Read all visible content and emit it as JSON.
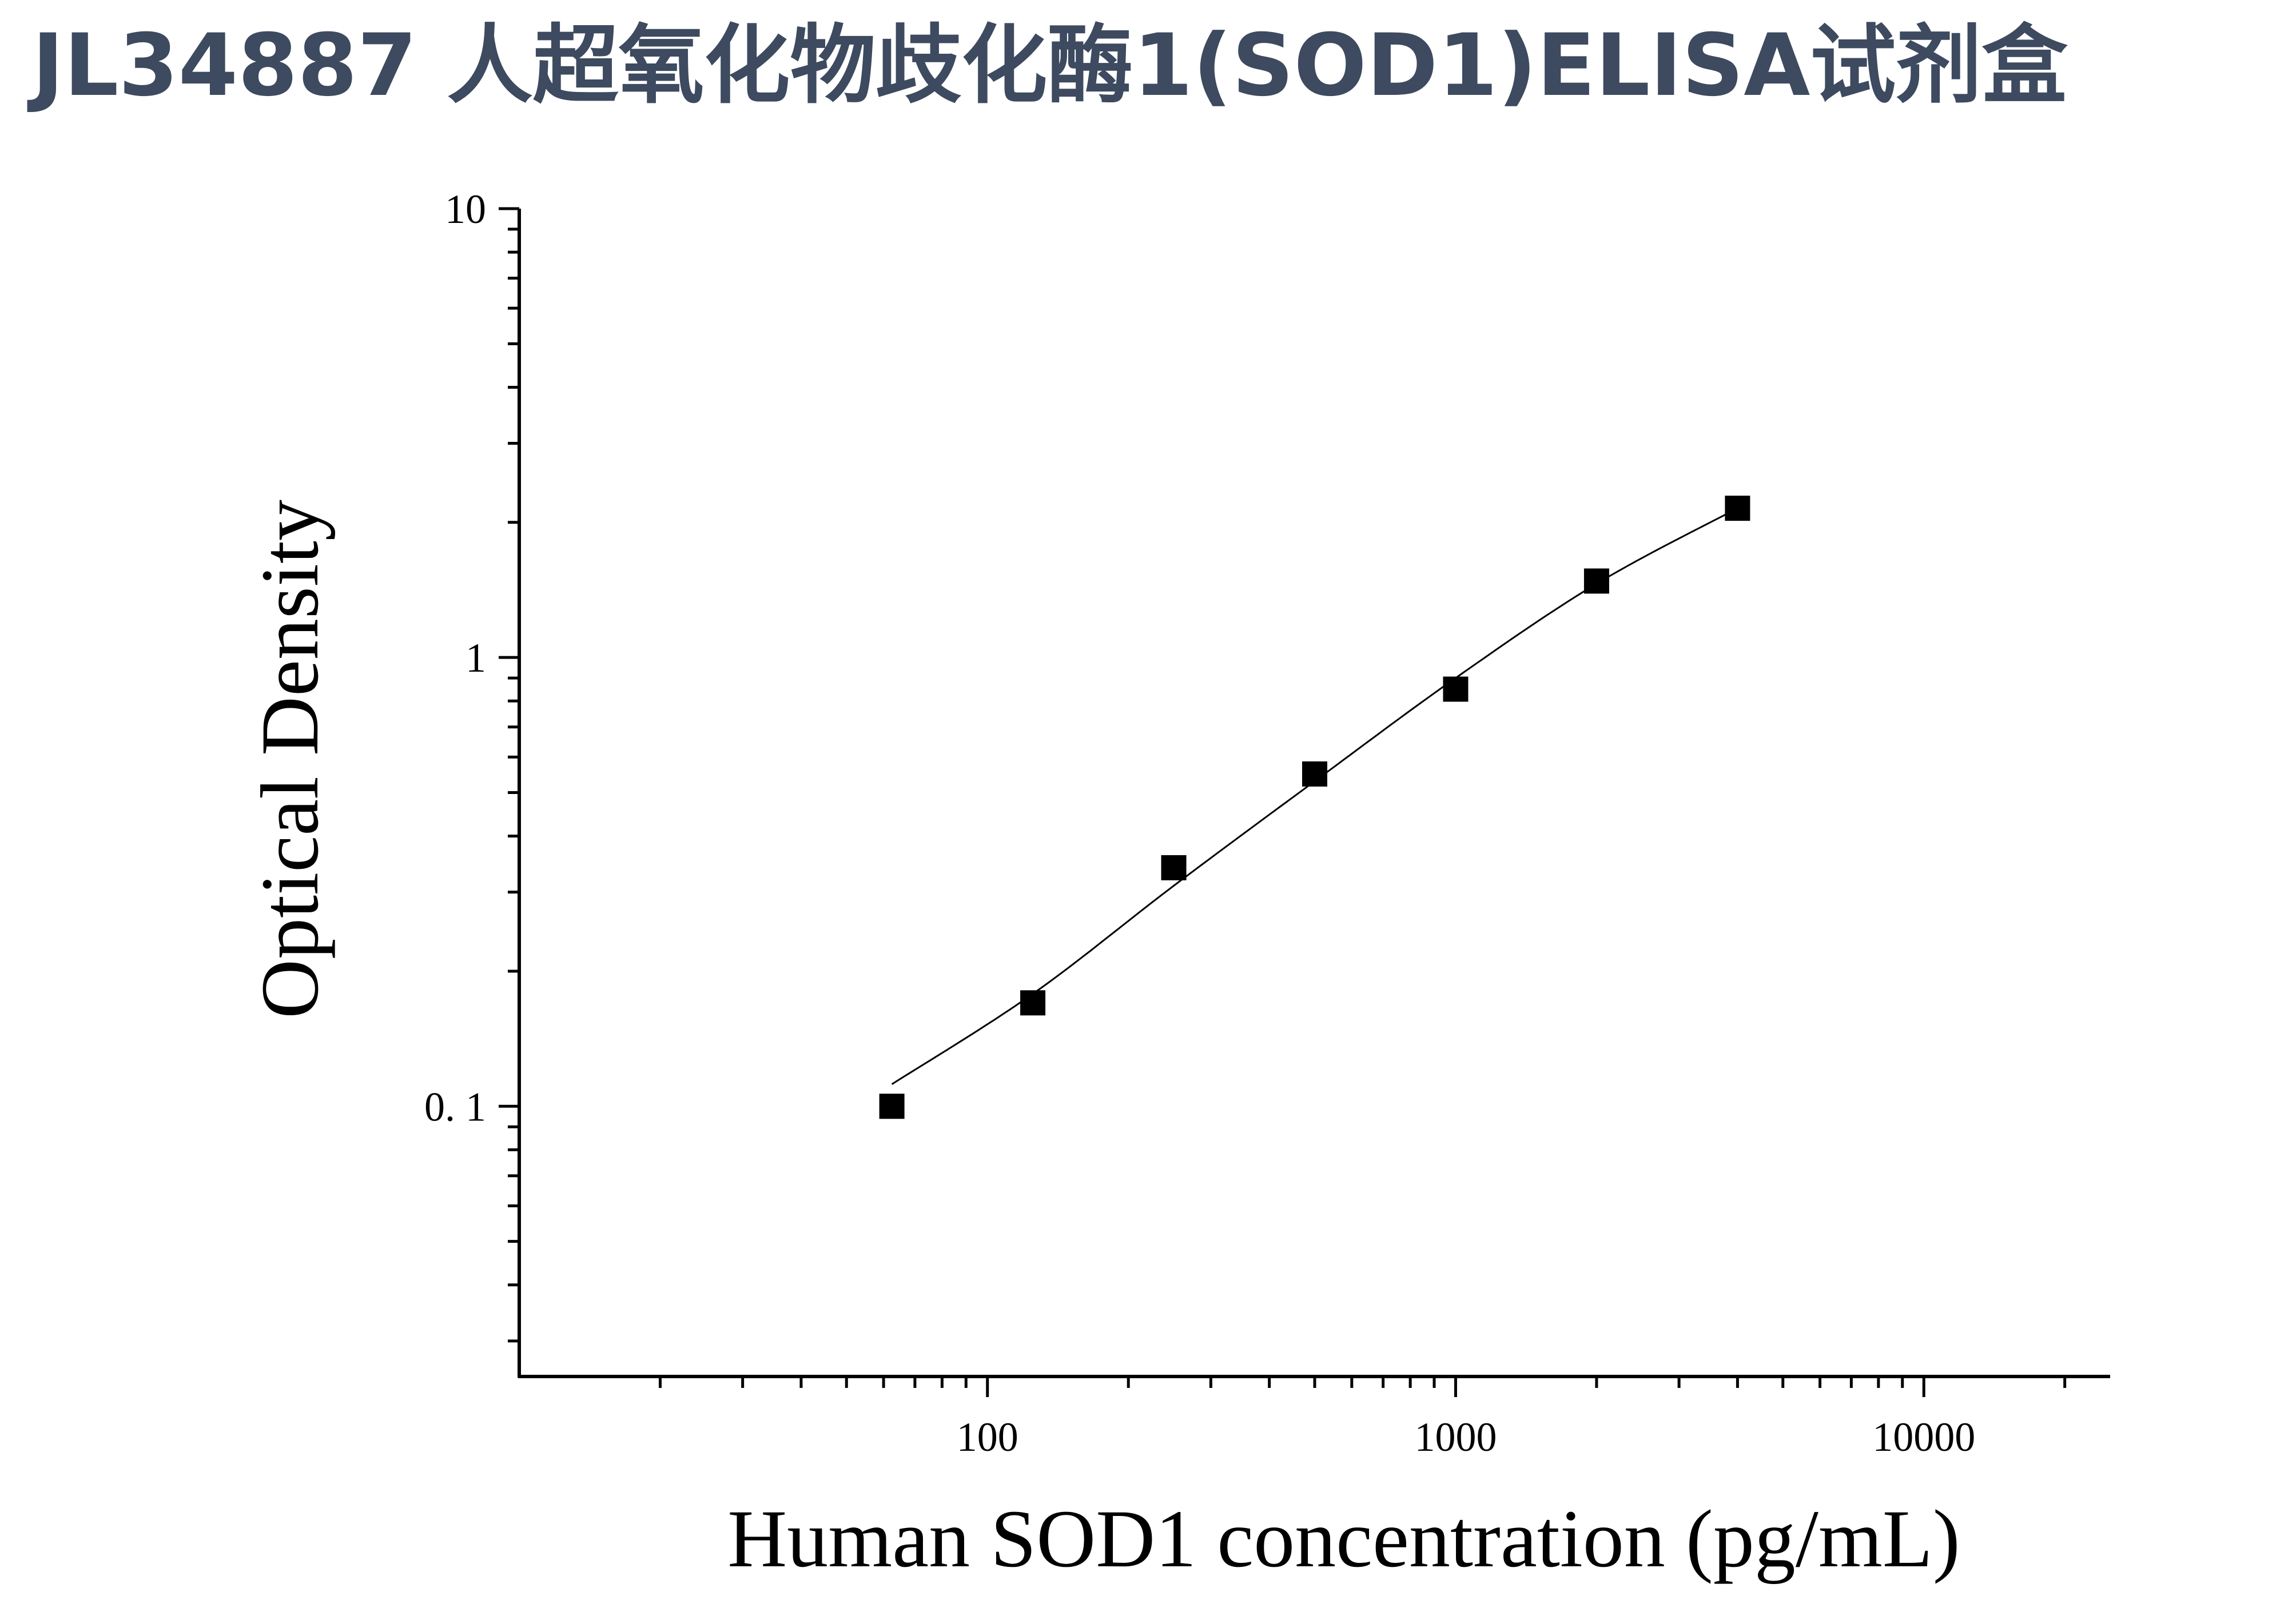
{
  "page": {
    "title": "JL34887 人超氧化物歧化酶1(SOD1)ELISA试剂盒"
  },
  "chart_data": {
    "type": "scatter",
    "xlabel": "Human SOD1 concentration (pg/mL)",
    "ylabel": "Optical Density",
    "x_scale": "log",
    "y_scale": "log",
    "xlim": [
      10,
      25000
    ],
    "ylim": [
      0.025,
      10
    ],
    "x_ticks": [
      100,
      1000,
      10000
    ],
    "x_tick_labels": [
      "100",
      "1000",
      "10000"
    ],
    "y_ticks": [
      0.1,
      1,
      10
    ],
    "y_tick_labels": [
      "0. 1",
      "1",
      "10"
    ],
    "grid": false,
    "points": {
      "x": [
        62.5,
        125,
        250,
        500,
        1000,
        2000,
        4000
      ],
      "y": [
        0.1,
        0.17,
        0.34,
        0.55,
        0.85,
        1.48,
        2.15
      ]
    },
    "fit_curve": {
      "x": [
        62.5,
        125,
        250,
        500,
        1000,
        2000,
        4000
      ],
      "y": [
        0.112,
        0.178,
        0.31,
        0.53,
        0.9,
        1.46,
        2.15
      ]
    },
    "colors": {
      "marker": "#000000",
      "curve": "#000000",
      "title": "#3d4a5f"
    }
  }
}
